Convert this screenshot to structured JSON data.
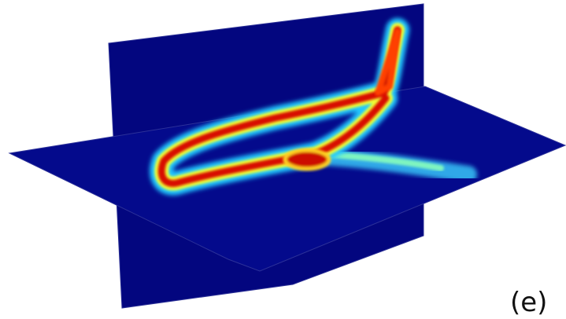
{
  "label": "(e)"
}
